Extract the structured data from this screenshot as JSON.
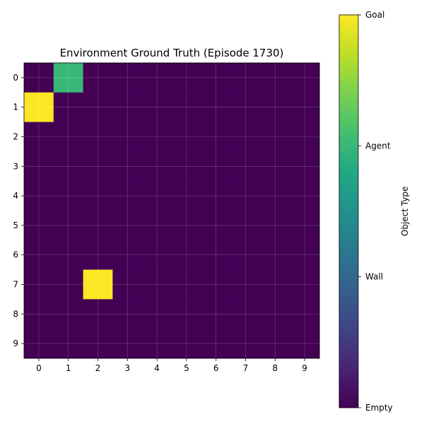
{
  "chart_data": {
    "type": "heatmap",
    "title": "Environment Ground Truth (Episode 1730)",
    "xlabel": "",
    "ylabel": "",
    "x_ticks": [
      "0",
      "1",
      "2",
      "3",
      "4",
      "5",
      "6",
      "7",
      "8",
      "9"
    ],
    "y_ticks": [
      "0",
      "1",
      "2",
      "3",
      "4",
      "5",
      "6",
      "7",
      "8",
      "9"
    ],
    "grid": true,
    "cells": [
      {
        "row": 0,
        "col": 1,
        "value": 2
      },
      {
        "row": 1,
        "col": 0,
        "value": 3
      },
      {
        "row": 7,
        "col": 2,
        "value": 3
      }
    ],
    "default_value": 0,
    "colorbar": {
      "label": "Object Type",
      "range": [
        0,
        3
      ],
      "ticks": [
        {
          "value": 0,
          "label": "Empty"
        },
        {
          "value": 1,
          "label": "Wall"
        },
        {
          "value": 2,
          "label": "Agent"
        },
        {
          "value": 3,
          "label": "Goal"
        }
      ],
      "colormap": "viridis"
    },
    "colors": {
      "Empty": "#440154",
      "Agent": "#21a585",
      "Goal": "#fde725"
    }
  }
}
